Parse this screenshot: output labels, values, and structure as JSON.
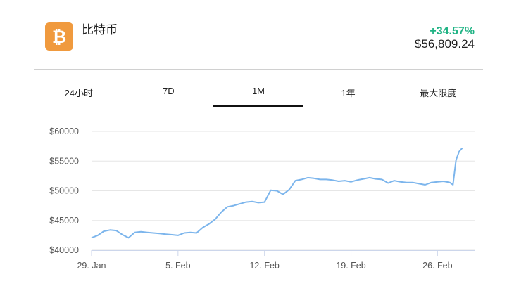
{
  "coin": {
    "name": "比特币",
    "icon": "bitcoin-icon",
    "icon_color": "#f09a3e",
    "change": "+34.57%",
    "change_color": "#1fb384",
    "price": "$56,809.24"
  },
  "tabs": [
    {
      "label": "24小时",
      "active": false
    },
    {
      "label": "7D",
      "active": false
    },
    {
      "label": "1M",
      "active": true
    },
    {
      "label": "1年",
      "active": false
    },
    {
      "label": "最大限度",
      "active": false
    }
  ],
  "chart_data": {
    "type": "line",
    "title": "",
    "xlabel": "",
    "ylabel": "",
    "ylim": [
      40000,
      60000
    ],
    "yticks": [
      60000,
      55000,
      50000,
      45000,
      40000
    ],
    "ytick_labels": [
      "$60000",
      "$55000",
      "$50000",
      "$45000",
      "$40000"
    ],
    "xlim": [
      "2021-01-29",
      "2021-03-01"
    ],
    "xticks": [
      "2021-01-29",
      "2021-02-05",
      "2021-02-12",
      "2021-02-19",
      "2021-02-26"
    ],
    "xtick_labels": [
      "29. Jan",
      "5. Feb",
      "12. Feb",
      "19. Feb",
      "26. Feb"
    ],
    "grid": true,
    "line_color": "#7cb5ec",
    "series": [
      {
        "x": [
          "2021-01-29",
          "2021-01-29T12:00",
          "2021-01-30",
          "2021-01-30T12:00",
          "2021-01-31",
          "2021-01-31T12:00",
          "2021-02-01",
          "2021-02-01T12:00",
          "2021-02-02",
          "2021-02-02T12:00",
          "2021-02-03",
          "2021-02-03T12:00",
          "2021-02-04",
          "2021-02-04T12:00",
          "2021-02-05",
          "2021-02-05T12:00",
          "2021-02-06",
          "2021-02-06T12:00",
          "2021-02-07",
          "2021-02-07T12:00",
          "2021-02-08",
          "2021-02-08T12:00",
          "2021-02-09",
          "2021-02-09T12:00",
          "2021-02-10",
          "2021-02-10T12:00",
          "2021-02-11",
          "2021-02-11T12:00",
          "2021-02-12",
          "2021-02-12T12:00",
          "2021-02-13",
          "2021-02-13T12:00",
          "2021-02-14",
          "2021-02-14T12:00",
          "2021-02-15",
          "2021-02-15T12:00",
          "2021-02-16",
          "2021-02-16T12:00",
          "2021-02-17",
          "2021-02-17T12:00",
          "2021-02-18",
          "2021-02-18T12:00",
          "2021-02-19",
          "2021-02-19T12:00",
          "2021-02-20",
          "2021-02-20T12:00",
          "2021-02-21",
          "2021-02-21T12:00",
          "2021-02-22",
          "2021-02-22T12:00",
          "2021-02-23",
          "2021-02-23T12:00",
          "2021-02-24",
          "2021-02-24T12:00",
          "2021-02-25",
          "2021-02-25T12:00",
          "2021-02-26",
          "2021-02-26T12:00",
          "2021-02-27",
          "2021-02-27T06:00",
          "2021-02-27T12:00",
          "2021-02-27T18:00",
          "2021-02-28"
        ],
        "values": [
          42100,
          42500,
          43200,
          43400,
          43300,
          42600,
          42100,
          43000,
          43100,
          43000,
          42900,
          42800,
          42700,
          42600,
          42500,
          42900,
          43000,
          42900,
          43800,
          44400,
          45200,
          46400,
          47300,
          47500,
          47800,
          48100,
          48200,
          48000,
          48100,
          50100,
          50000,
          49400,
          50200,
          51700,
          51900,
          52200,
          52100,
          51900,
          51900,
          51800,
          51600,
          51700,
          51500,
          51800,
          52000,
          52200,
          52000,
          51900,
          51300,
          51700,
          51500,
          51400,
          51400,
          51200,
          51000,
          51400,
          51500,
          51600,
          51400,
          51000,
          55200,
          56600,
          57200
        ]
      }
    ]
  }
}
